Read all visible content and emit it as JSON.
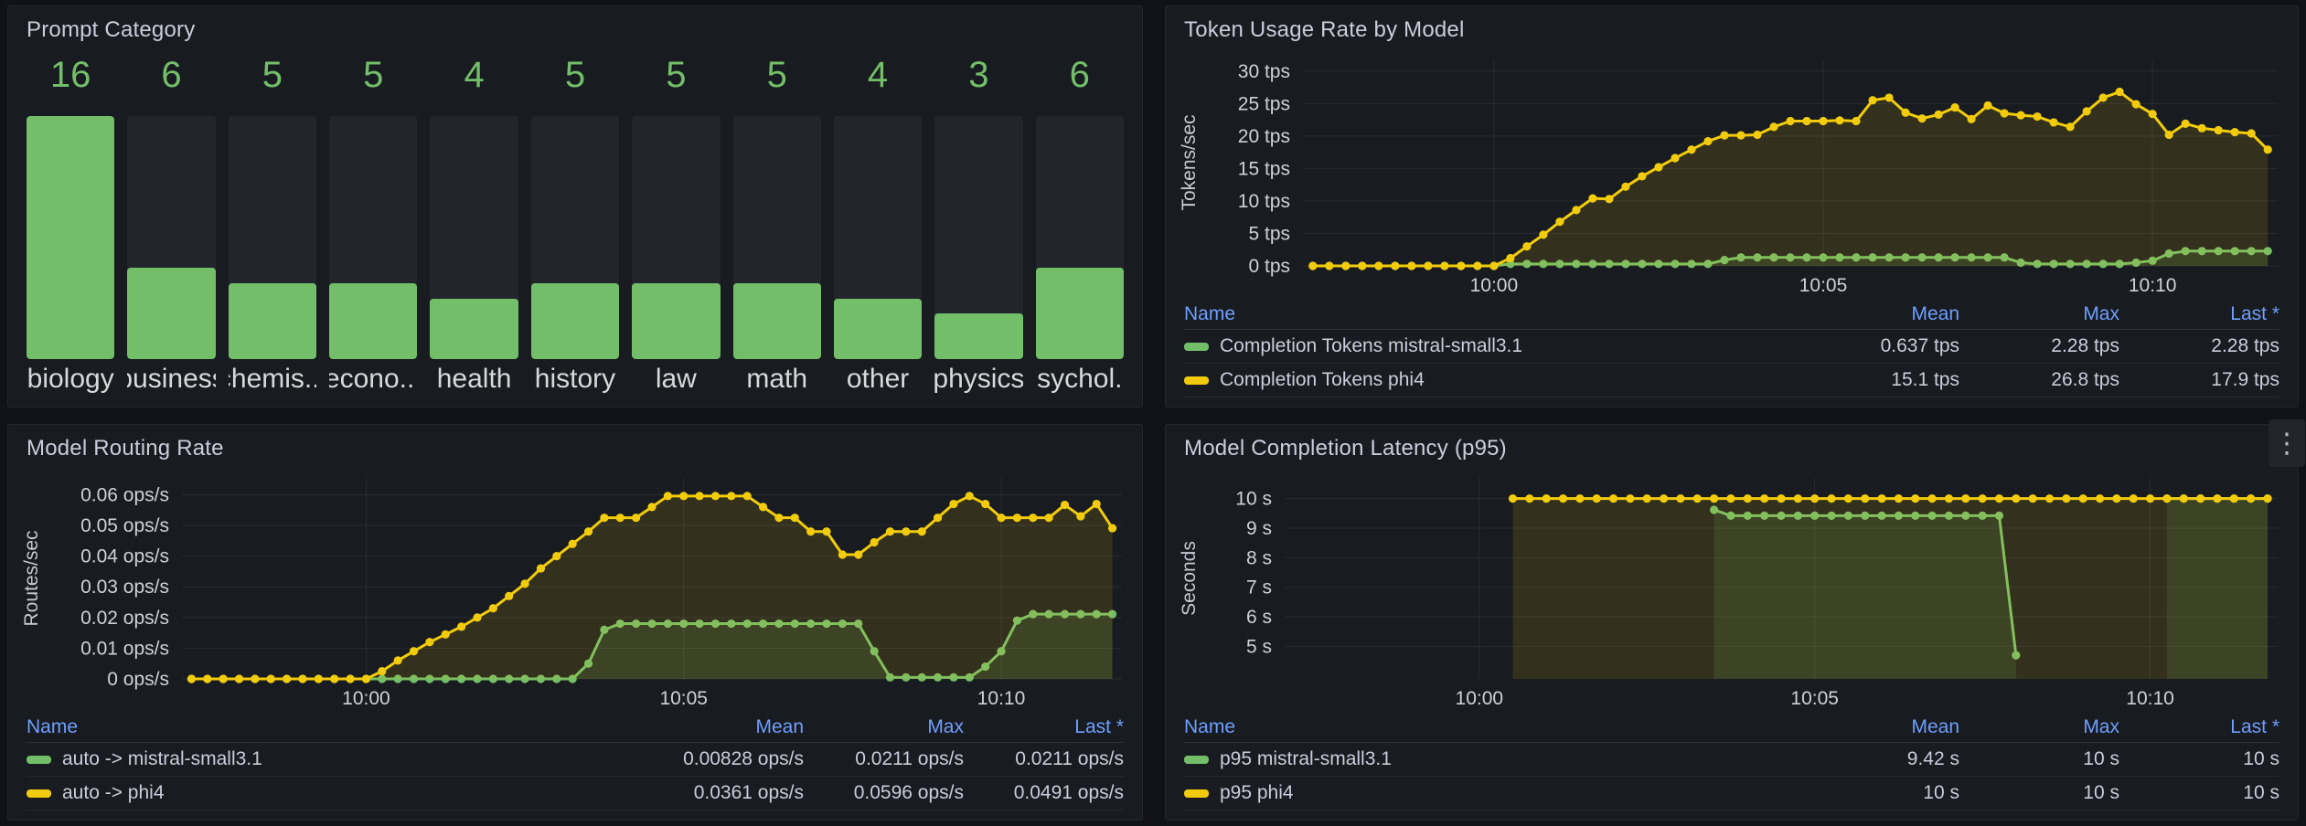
{
  "colors": {
    "green": "#73bf69",
    "yellow": "#f2cc0c",
    "link_blue": "#6e9fff",
    "panel_bg": "#181b1f",
    "page_bg": "#111217",
    "bar_track": "#22252b"
  },
  "icons": {
    "kebab": "⋮"
  },
  "legend_headers": [
    "Name",
    "Mean",
    "Max",
    "Last *"
  ],
  "panels": {
    "prompt_category": {
      "title": "Prompt Category"
    },
    "token_usage": {
      "title": "Token Usage Rate by Model",
      "legend_rows": [
        {
          "color": "#73bf69",
          "name": "Completion Tokens mistral-small3.1",
          "mean": "0.637 tps",
          "max": "2.28 tps",
          "last": "2.28 tps"
        },
        {
          "color": "#f2cc0c",
          "name": "Completion Tokens phi4",
          "mean": "15.1 tps",
          "max": "26.8 tps",
          "last": "17.9 tps"
        }
      ]
    },
    "routing": {
      "title": "Model Routing Rate",
      "legend_rows": [
        {
          "color": "#73bf69",
          "name": "auto -> mistral-small3.1",
          "mean": "0.00828 ops/s",
          "max": "0.0211 ops/s",
          "last": "0.0211 ops/s"
        },
        {
          "color": "#f2cc0c",
          "name": "auto -> phi4",
          "mean": "0.0361 ops/s",
          "max": "0.0596 ops/s",
          "last": "0.0491 ops/s"
        }
      ]
    },
    "latency": {
      "title": "Model Completion Latency (p95)",
      "legend_rows": [
        {
          "color": "#73bf69",
          "name": "p95 mistral-small3.1",
          "mean": "9.42 s",
          "max": "10 s",
          "last": "10 s"
        },
        {
          "color": "#f2cc0c",
          "name": "p95 phi4",
          "mean": "10 s",
          "max": "10 s",
          "last": "10 s"
        }
      ]
    }
  },
  "chart_data": [
    {
      "id": "prompt_category",
      "type": "bar",
      "title": "Prompt Category",
      "categories": [
        "biology",
        "business",
        "chemis...",
        "econo...",
        "health",
        "history",
        "law",
        "math",
        "other",
        "physics",
        "psychol..."
      ],
      "values": [
        16,
        6,
        5,
        5,
        4,
        5,
        5,
        5,
        4,
        3,
        6
      ],
      "ylim": [
        0,
        16
      ],
      "bar_color": "#73bf69"
    },
    {
      "id": "token_usage",
      "type": "line",
      "title": "Token Usage Rate by Model",
      "ylabel": "Tokens/sec",
      "y_label_width": 112,
      "y_range": [
        0,
        31.8
      ],
      "x_range": [
        -2.9,
        11.9
      ],
      "y_ticks": [
        {
          "v": 0,
          "label": "0 tps"
        },
        {
          "v": 5,
          "label": "5 tps"
        },
        {
          "v": 10,
          "label": "10 tps"
        },
        {
          "v": 15,
          "label": "15 tps"
        },
        {
          "v": 20,
          "label": "20 tps"
        },
        {
          "v": 25,
          "label": "25 tps"
        },
        {
          "v": 30,
          "label": "30 tps"
        }
      ],
      "x_ticks": [
        {
          "t": 0,
          "label": "10:00"
        },
        {
          "t": 5,
          "label": "10:05"
        },
        {
          "t": 10,
          "label": "10:10"
        }
      ],
      "t_start": -2.75,
      "t_step": 0.25,
      "series": [
        {
          "name": "Completion Tokens mistral-small3.1",
          "color": "#73bf69",
          "values": [
            0,
            0,
            0,
            0,
            0,
            0,
            0,
            0,
            0,
            0,
            0,
            0,
            0.3,
            0.3,
            0.3,
            0.3,
            0.3,
            0.3,
            0.3,
            0.3,
            0.3,
            0.3,
            0.3,
            0.3,
            0.3,
            0.9,
            1.3,
            1.3,
            1.3,
            1.3,
            1.3,
            1.3,
            1.3,
            1.3,
            1.3,
            1.3,
            1.3,
            1.3,
            1.3,
            1.3,
            1.3,
            1.3,
            1.3,
            0.5,
            0.3,
            0.3,
            0.3,
            0.3,
            0.3,
            0.3,
            0.5,
            0.8,
            1.9,
            2.28,
            2.28,
            2.28,
            2.28,
            2.28,
            2.28
          ]
        },
        {
          "name": "Completion Tokens phi4",
          "color": "#f2cc0c",
          "values": [
            0,
            0,
            0,
            0,
            0,
            0,
            0,
            0,
            0,
            0,
            0,
            0,
            1.2,
            3,
            4.8,
            6.8,
            8.6,
            10.4,
            10.3,
            12.2,
            13.8,
            15.2,
            16.6,
            17.9,
            19.2,
            20.1,
            20.1,
            20.2,
            21.4,
            22.3,
            22.3,
            22.3,
            22.4,
            22.3,
            25.5,
            25.9,
            23.6,
            22.7,
            23.3,
            24.4,
            22.6,
            24.7,
            23.5,
            23.2,
            23,
            22.1,
            21.4,
            23.8,
            25.9,
            26.8,
            24.9,
            23.4,
            20.2,
            21.9,
            21.2,
            20.9,
            20.6,
            20.4,
            17.9
          ]
        }
      ]
    },
    {
      "id": "routing",
      "type": "line",
      "title": "Model Routing Rate",
      "ylabel": "Routes/sec",
      "y_label_width": 152,
      "y_range": [
        0,
        0.0655
      ],
      "x_range": [
        -2.9,
        11.9
      ],
      "y_ticks": [
        {
          "v": 0,
          "label": "0 ops/s"
        },
        {
          "v": 0.01,
          "label": "0.01 ops/s"
        },
        {
          "v": 0.02,
          "label": "0.02 ops/s"
        },
        {
          "v": 0.03,
          "label": "0.03 ops/s"
        },
        {
          "v": 0.04,
          "label": "0.04 ops/s"
        },
        {
          "v": 0.05,
          "label": "0.05 ops/s"
        },
        {
          "v": 0.06,
          "label": "0.06 ops/s"
        }
      ],
      "x_ticks": [
        {
          "t": 0,
          "label": "10:00"
        },
        {
          "t": 5,
          "label": "10:05"
        },
        {
          "t": 10,
          "label": "10:10"
        }
      ],
      "t_start": -2.75,
      "t_step": 0.25,
      "series": [
        {
          "name": "auto -> mistral-small3.1",
          "color": "#73bf69",
          "values": [
            0,
            0,
            0,
            0,
            0,
            0,
            0,
            0,
            0,
            0,
            0,
            0,
            0,
            0,
            0,
            0,
            0,
            0,
            0,
            0,
            0,
            0,
            0,
            0,
            0,
            0.005,
            0.016,
            0.018,
            0.018,
            0.018,
            0.018,
            0.018,
            0.018,
            0.018,
            0.018,
            0.018,
            0.018,
            0.018,
            0.018,
            0.018,
            0.018,
            0.018,
            0.018,
            0.009,
            0.0005,
            0.0005,
            0.0005,
            0.0005,
            0.0005,
            0.0005,
            0.004,
            0.009,
            0.019,
            0.0211,
            0.0211,
            0.0211,
            0.0211,
            0.0211,
            0.0211
          ]
        },
        {
          "name": "auto -> phi4",
          "color": "#f2cc0c",
          "values": [
            0,
            0,
            0,
            0,
            0,
            0,
            0,
            0,
            0,
            0,
            0,
            0,
            0.0025,
            0.006,
            0.009,
            0.012,
            0.0145,
            0.017,
            0.02,
            0.023,
            0.027,
            0.031,
            0.036,
            0.04,
            0.044,
            0.048,
            0.0525,
            0.0525,
            0.0525,
            0.056,
            0.0596,
            0.0596,
            0.0596,
            0.0596,
            0.0596,
            0.0596,
            0.056,
            0.0525,
            0.0525,
            0.048,
            0.048,
            0.0405,
            0.0405,
            0.0445,
            0.048,
            0.048,
            0.048,
            0.0525,
            0.057,
            0.0596,
            0.057,
            0.0525,
            0.0525,
            0.0525,
            0.0525,
            0.0567,
            0.053,
            0.057,
            0.0491
          ]
        }
      ]
    },
    {
      "id": "latency",
      "type": "line",
      "title": "Model Completion Latency (p95)",
      "ylabel": "Seconds",
      "y_label_width": 92,
      "y_range": [
        3.9,
        10.7
      ],
      "x_range": [
        -2.9,
        11.9
      ],
      "y_ticks": [
        {
          "v": 5,
          "label": "5 s"
        },
        {
          "v": 6,
          "label": "6 s"
        },
        {
          "v": 7,
          "label": "7 s"
        },
        {
          "v": 8,
          "label": "8 s"
        },
        {
          "v": 9,
          "label": "9 s"
        },
        {
          "v": 10,
          "label": "10 s"
        }
      ],
      "x_ticks": [
        {
          "t": 0,
          "label": "10:00"
        },
        {
          "t": 5,
          "label": "10:05"
        },
        {
          "t": 10,
          "label": "10:10"
        }
      ],
      "t_start": -2.75,
      "t_step": 0.25,
      "series": [
        {
          "name": "p95 mistral-small3.1",
          "color": "#73bf69",
          "values": [
            null,
            null,
            null,
            null,
            null,
            null,
            null,
            null,
            null,
            null,
            null,
            null,
            null,
            null,
            null,
            null,
            null,
            null,
            null,
            null,
            null,
            null,
            null,
            null,
            null,
            9.62,
            9.42,
            9.42,
            9.42,
            9.42,
            9.42,
            9.42,
            9.42,
            9.42,
            9.42,
            9.42,
            9.42,
            9.42,
            9.42,
            9.42,
            9.42,
            9.42,
            9.42,
            4.7,
            null,
            null,
            null,
            null,
            null,
            null,
            null,
            null,
            10,
            10,
            10,
            10,
            10,
            10,
            10
          ]
        },
        {
          "name": "p95 phi4",
          "color": "#f2cc0c",
          "values": [
            null,
            null,
            null,
            null,
            null,
            null,
            null,
            null,
            null,
            null,
            null,
            null,
            null,
            10,
            10,
            10,
            10,
            10,
            10,
            10,
            10,
            10,
            10,
            10,
            10,
            10,
            10,
            10,
            10,
            10,
            10,
            10,
            10,
            10,
            10,
            10,
            10,
            10,
            10,
            10,
            10,
            10,
            10,
            10,
            10,
            10,
            10,
            10,
            10,
            10,
            10,
            10,
            10,
            10,
            10,
            10,
            10,
            10,
            10
          ]
        }
      ]
    }
  ]
}
